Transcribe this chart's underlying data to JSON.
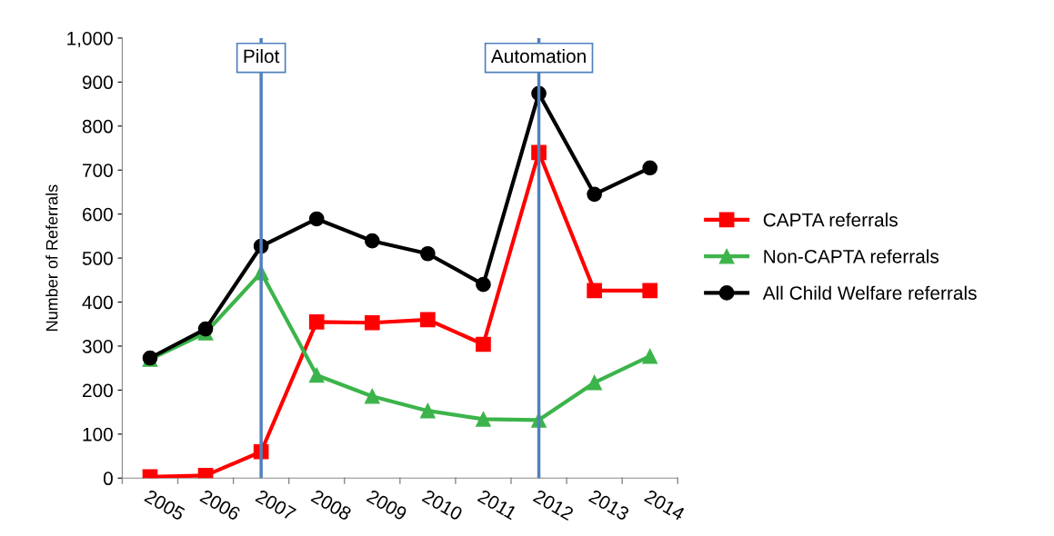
{
  "chart_data": {
    "type": "line",
    "ylabel": "Number of Referrals",
    "categories": [
      "2005",
      "2006",
      "2007",
      "2008",
      "2009",
      "2010",
      "2011",
      "2012",
      "2013",
      "2014"
    ],
    "series": [
      {
        "name": "CAPTA referrals",
        "color": "#ff0000",
        "marker": "square",
        "values": [
          3,
          6,
          60,
          355,
          353,
          360,
          304,
          740,
          426,
          426
        ]
      },
      {
        "name": "Non-CAPTA referrals",
        "color": "#3cb44b",
        "marker": "triangle",
        "values": [
          270,
          330,
          467,
          234,
          186,
          153,
          134,
          132,
          217,
          277
        ]
      },
      {
        "name": "All Child Welfare referrals",
        "color": "#000000",
        "marker": "circle",
        "values": [
          273,
          339,
          527,
          589,
          539,
          510,
          440,
          874,
          645,
          705
        ]
      }
    ],
    "ylim": [
      0,
      1000
    ],
    "yticks": [
      0,
      100,
      200,
      300,
      400,
      500,
      600,
      700,
      800,
      900,
      {
        "value": 1000,
        "label": "1,000"
      }
    ],
    "ref_lines": [
      {
        "axis": "x",
        "value": "2007",
        "label": "Pilot",
        "color": "#4f81bd"
      },
      {
        "axis": "x",
        "value": "2012",
        "label": "Automation",
        "color": "#4f81bd"
      }
    ],
    "grid": false,
    "legend": "right",
    "line_style": "solid"
  }
}
